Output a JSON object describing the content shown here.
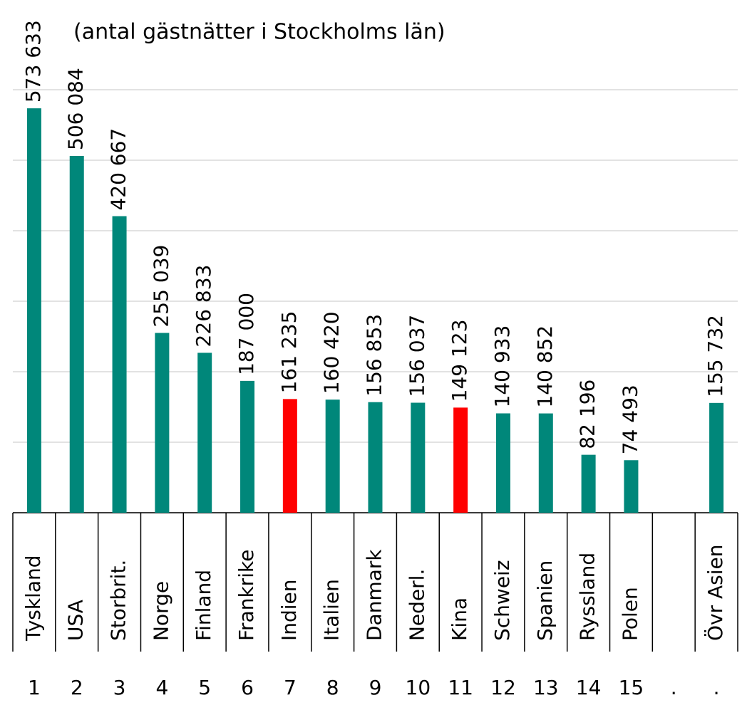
{
  "chart_data": {
    "type": "bar",
    "subtitle": "(antal gästnätter i Stockholms län)",
    "categories": [
      "Tyskland",
      "USA",
      "Storbrit.",
      "Norge",
      "Finland",
      "Frankrike",
      "Indien",
      "Italien",
      "Danmark",
      "Nederl.",
      "Kina",
      "Schweiz",
      "Spanien",
      "Ryssland",
      "Polen",
      null,
      "Övr Asien"
    ],
    "ranks": [
      "1",
      "2",
      "3",
      "4",
      "5",
      "6",
      "7",
      "8",
      "9",
      "10",
      "11",
      "12",
      "13",
      "14",
      "15",
      ".",
      "."
    ],
    "values": [
      573633,
      506084,
      420667,
      255039,
      226833,
      187000,
      161235,
      160420,
      156853,
      156037,
      149123,
      140933,
      140852,
      82196,
      74493,
      null,
      155732
    ],
    "value_labels": [
      "573 633",
      "506 084",
      "420 667",
      "255 039",
      "226 833",
      "187 000",
      "161 235",
      "160 420",
      "156 853",
      "156 037",
      "149 123",
      "140 933",
      "140 852",
      "82 196",
      "74 493",
      null,
      "155 732"
    ],
    "colors": [
      "#00877a",
      "#00877a",
      "#00877a",
      "#00877a",
      "#00877a",
      "#00877a",
      "#ff0000",
      "#00877a",
      "#00877a",
      "#00877a",
      "#ff0000",
      "#00877a",
      "#00877a",
      "#00877a",
      "#00877a",
      null,
      "#00877a"
    ],
    "ylim": [
      0,
      600000
    ],
    "yticks": [
      0,
      100000,
      200000,
      300000,
      400000,
      500000,
      600000
    ],
    "grid": true
  }
}
